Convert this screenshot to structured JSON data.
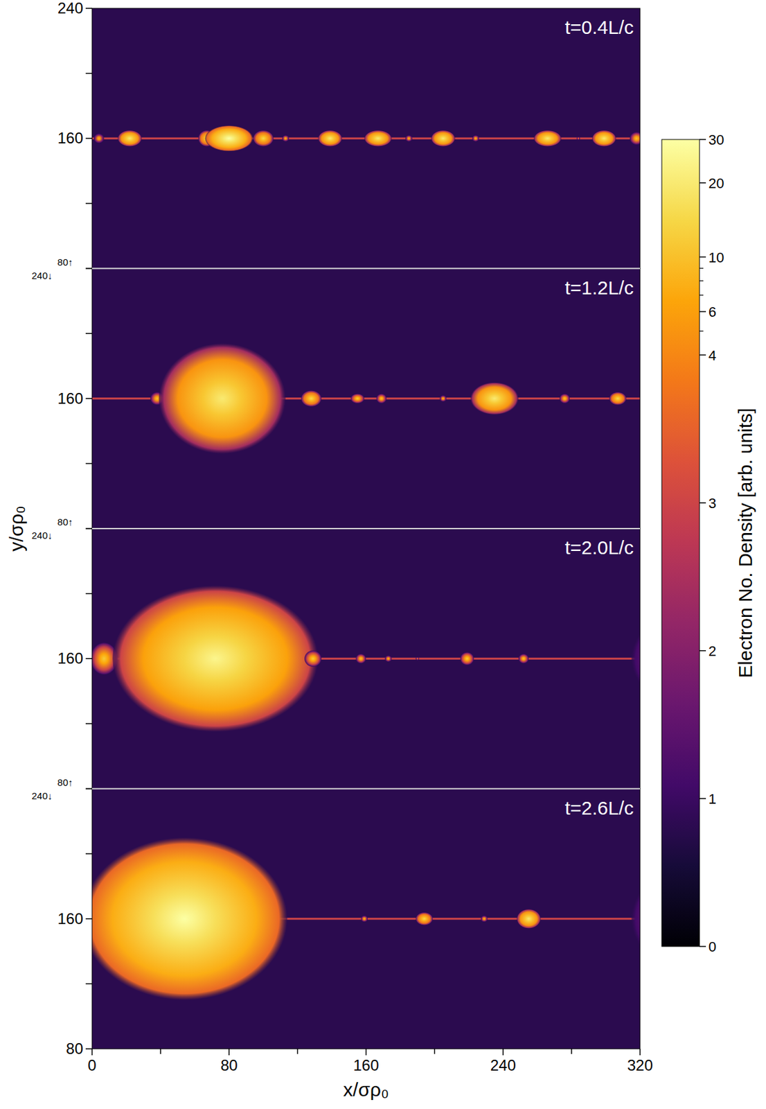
{
  "chart_data": {
    "type": "heatmap",
    "xlabel": "x/σρ₀",
    "ylabel": "y/σρ₀",
    "xlim": [
      0,
      320
    ],
    "xticks": [
      0,
      80,
      160,
      240,
      320
    ],
    "minor_xticks": [
      40,
      120,
      200,
      280
    ],
    "colorbar": {
      "label": "Electron No. Density [arb. units]",
      "range": [
        0,
        30
      ],
      "ticks": [
        0,
        1,
        2,
        3,
        4,
        6,
        10,
        20,
        30
      ],
      "minor_ticks": [
        5,
        7,
        8,
        9
      ],
      "linear_below": 4
    },
    "panels": [
      {
        "title": "t=0.4L/c",
        "ylim": [
          80,
          240
        ],
        "yticks": [
          {
            "value": 80,
            "label": "80↑"
          },
          160,
          240
        ],
        "minor_yticks": [
          120,
          200
        ],
        "background": 0.8,
        "current_sheet": {
          "y": 160,
          "density": 3
        },
        "plasmoids": [
          {
            "x": 4,
            "y": 160,
            "rx": 3,
            "ry": 3,
            "peak": 8
          },
          {
            "x": 22,
            "y": 160,
            "rx": 7,
            "ry": 5,
            "peak": 20
          },
          {
            "x": 67,
            "y": 160,
            "rx": 5,
            "ry": 5,
            "peak": 15
          },
          {
            "x": 80,
            "y": 160,
            "rx": 14,
            "ry": 8,
            "peak": 30
          },
          {
            "x": 100,
            "y": 160,
            "rx": 6,
            "ry": 5,
            "peak": 15
          },
          {
            "x": 113,
            "y": 160,
            "rx": 2,
            "ry": 2,
            "peak": 8
          },
          {
            "x": 139,
            "y": 160,
            "rx": 7,
            "ry": 5,
            "peak": 20
          },
          {
            "x": 167,
            "y": 160,
            "rx": 8,
            "ry": 5,
            "peak": 20
          },
          {
            "x": 185,
            "y": 160,
            "rx": 2,
            "ry": 2,
            "peak": 8
          },
          {
            "x": 205,
            "y": 160,
            "rx": 7,
            "ry": 5,
            "peak": 20
          },
          {
            "x": 224,
            "y": 160,
            "rx": 2,
            "ry": 2,
            "peak": 8
          },
          {
            "x": 266,
            "y": 160,
            "rx": 8,
            "ry": 5,
            "peak": 20
          },
          {
            "x": 284,
            "y": 160,
            "rx": 1,
            "ry": 1,
            "peak": 6
          },
          {
            "x": 299,
            "y": 160,
            "rx": 7,
            "ry": 5,
            "peak": 20
          },
          {
            "x": 318,
            "y": 160,
            "rx": 4,
            "ry": 4,
            "peak": 10
          }
        ]
      },
      {
        "title": "t=1.2L/c",
        "ylim": [
          80,
          240
        ],
        "yticks": [
          {
            "value": 80,
            "label": "80↑"
          },
          160,
          {
            "value": 240,
            "label": "240↓"
          }
        ],
        "minor_yticks": [
          120,
          200
        ],
        "background": 0.8,
        "current_sheet": {
          "y": 160,
          "density": 3
        },
        "plasmoids": [
          {
            "x": 38,
            "y": 160,
            "rx": 4,
            "ry": 4,
            "peak": 10
          },
          {
            "x": 76,
            "y": 160,
            "rx": 37,
            "ry": 34,
            "peak": 20
          },
          {
            "x": 128,
            "y": 160,
            "rx": 6,
            "ry": 5,
            "peak": 15
          },
          {
            "x": 155,
            "y": 160,
            "rx": 4,
            "ry": 3,
            "peak": 12
          },
          {
            "x": 169,
            "y": 160,
            "rx": 3,
            "ry": 3,
            "peak": 10
          },
          {
            "x": 205,
            "y": 160,
            "rx": 2,
            "ry": 2,
            "peak": 8
          },
          {
            "x": 235,
            "y": 160,
            "rx": 14,
            "ry": 10,
            "peak": 20
          },
          {
            "x": 276,
            "y": 160,
            "rx": 3,
            "ry": 3,
            "peak": 10
          },
          {
            "x": 307,
            "y": 160,
            "rx": 5,
            "ry": 4,
            "peak": 15
          }
        ]
      },
      {
        "title": "t=2.0L/c",
        "ylim": [
          80,
          240
        ],
        "yticks": [
          {
            "value": 80,
            "label": "80↑"
          },
          160,
          {
            "value": 240,
            "label": "240↓"
          }
        ],
        "minor_yticks": [
          120,
          200
        ],
        "background": 0.8,
        "current_sheet": {
          "y": 160,
          "density": 3
        },
        "plasmoids": [
          {
            "x": 7,
            "y": 160,
            "rx": 8,
            "ry": 10,
            "peak": 12
          },
          {
            "x": 72,
            "y": 160,
            "rx": 60,
            "ry": 45,
            "peak": 25
          },
          {
            "x": 129,
            "y": 160,
            "rx": 5,
            "ry": 5,
            "peak": 12
          },
          {
            "x": 157,
            "y": 160,
            "rx": 3,
            "ry": 3,
            "peak": 10
          },
          {
            "x": 173,
            "y": 160,
            "rx": 2,
            "ry": 2,
            "peak": 8
          },
          {
            "x": 190,
            "y": 160,
            "rx": 1,
            "ry": 1,
            "peak": 6
          },
          {
            "x": 219,
            "y": 160,
            "rx": 4,
            "ry": 4,
            "peak": 12
          },
          {
            "x": 252,
            "y": 160,
            "rx": 3,
            "ry": 3,
            "peak": 10
          },
          {
            "x": 345,
            "y": 160,
            "rx": 30,
            "ry": 28,
            "peak": 6
          }
        ]
      },
      {
        "title": "t=2.6L/c",
        "ylim": [
          80,
          240
        ],
        "yticks": [
          80,
          160,
          {
            "value": 240,
            "label": "240↓"
          }
        ],
        "minor_yticks": [
          120,
          200
        ],
        "background": 0.8,
        "current_sheet": {
          "y": 160,
          "density": 3
        },
        "plasmoids": [
          {
            "x": 54,
            "y": 160,
            "rx": 60,
            "ry": 50,
            "peak": 30
          },
          {
            "x": 159,
            "y": 160,
            "rx": 2,
            "ry": 2,
            "peak": 8
          },
          {
            "x": 194,
            "y": 160,
            "rx": 5,
            "ry": 4,
            "peak": 15
          },
          {
            "x": 229,
            "y": 160,
            "rx": 2,
            "ry": 2,
            "peak": 8
          },
          {
            "x": 255,
            "y": 160,
            "rx": 7,
            "ry": 6,
            "peak": 20
          },
          {
            "x": 345,
            "y": 160,
            "rx": 30,
            "ry": 30,
            "peak": 6
          }
        ]
      }
    ]
  }
}
